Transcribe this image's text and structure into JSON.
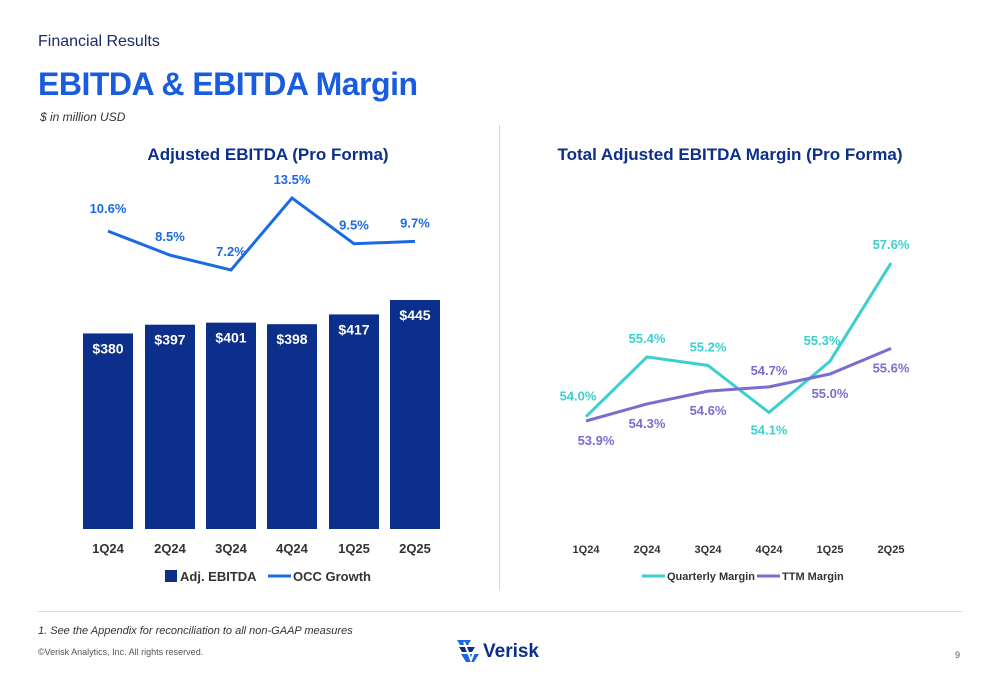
{
  "header": {
    "section": "Financial Results",
    "title": "EBITDA & EBITDA Margin",
    "units": "$ in million USD"
  },
  "footer": {
    "footnote": "1.   See the Appendix for reconciliation to all non-GAAP measures",
    "copyright": "©Verisk Analytics, Inc. All rights reserved.",
    "logo_text": "Verisk",
    "page": "9"
  },
  "colors": {
    "bar": "#0b2f8a",
    "occ_line": "#1a6ae6",
    "quarterly_margin": "#3ccfcf",
    "ttm_margin": "#7b6ccf",
    "title": "#1a5ce0"
  },
  "chart_data": [
    {
      "type": "bar",
      "title": "Adjusted EBITDA (Pro Forma)",
      "categories": [
        "1Q24",
        "2Q24",
        "3Q24",
        "4Q24",
        "1Q25",
        "2Q25"
      ],
      "series": [
        {
          "name": "Adj. EBITDA",
          "type": "bar",
          "values": [
            380,
            397,
            401,
            398,
            417,
            445
          ],
          "labels": [
            "$380",
            "$397",
            "$401",
            "$398",
            "$417",
            "$445"
          ]
        },
        {
          "name": "OCC Growth",
          "type": "line",
          "values": [
            10.6,
            8.5,
            7.2,
            13.5,
            9.5,
            9.7
          ],
          "labels": [
            "10.6%",
            "8.5%",
            "7.2%",
            "13.5%",
            "9.5%",
            "9.7%"
          ]
        }
      ],
      "legend": "bottom"
    },
    {
      "type": "line",
      "title": "Total Adjusted EBITDA Margin (Pro Forma)",
      "categories": [
        "1Q24",
        "2Q24",
        "3Q24",
        "4Q24",
        "1Q25",
        "2Q25"
      ],
      "series": [
        {
          "name": "Quarterly Margin",
          "values": [
            54.0,
            55.4,
            55.2,
            54.1,
            55.3,
            57.6
          ],
          "labels": [
            "54.0%",
            "55.4%",
            "55.2%",
            "54.1%",
            "55.3%",
            "57.6%"
          ]
        },
        {
          "name": "TTM Margin",
          "values": [
            53.9,
            54.3,
            54.6,
            54.7,
            55.0,
            55.6
          ],
          "labels": [
            "53.9%",
            "54.3%",
            "54.6%",
            "54.7%",
            "55.0%",
            "55.6%"
          ]
        }
      ],
      "legend": "bottom"
    }
  ]
}
